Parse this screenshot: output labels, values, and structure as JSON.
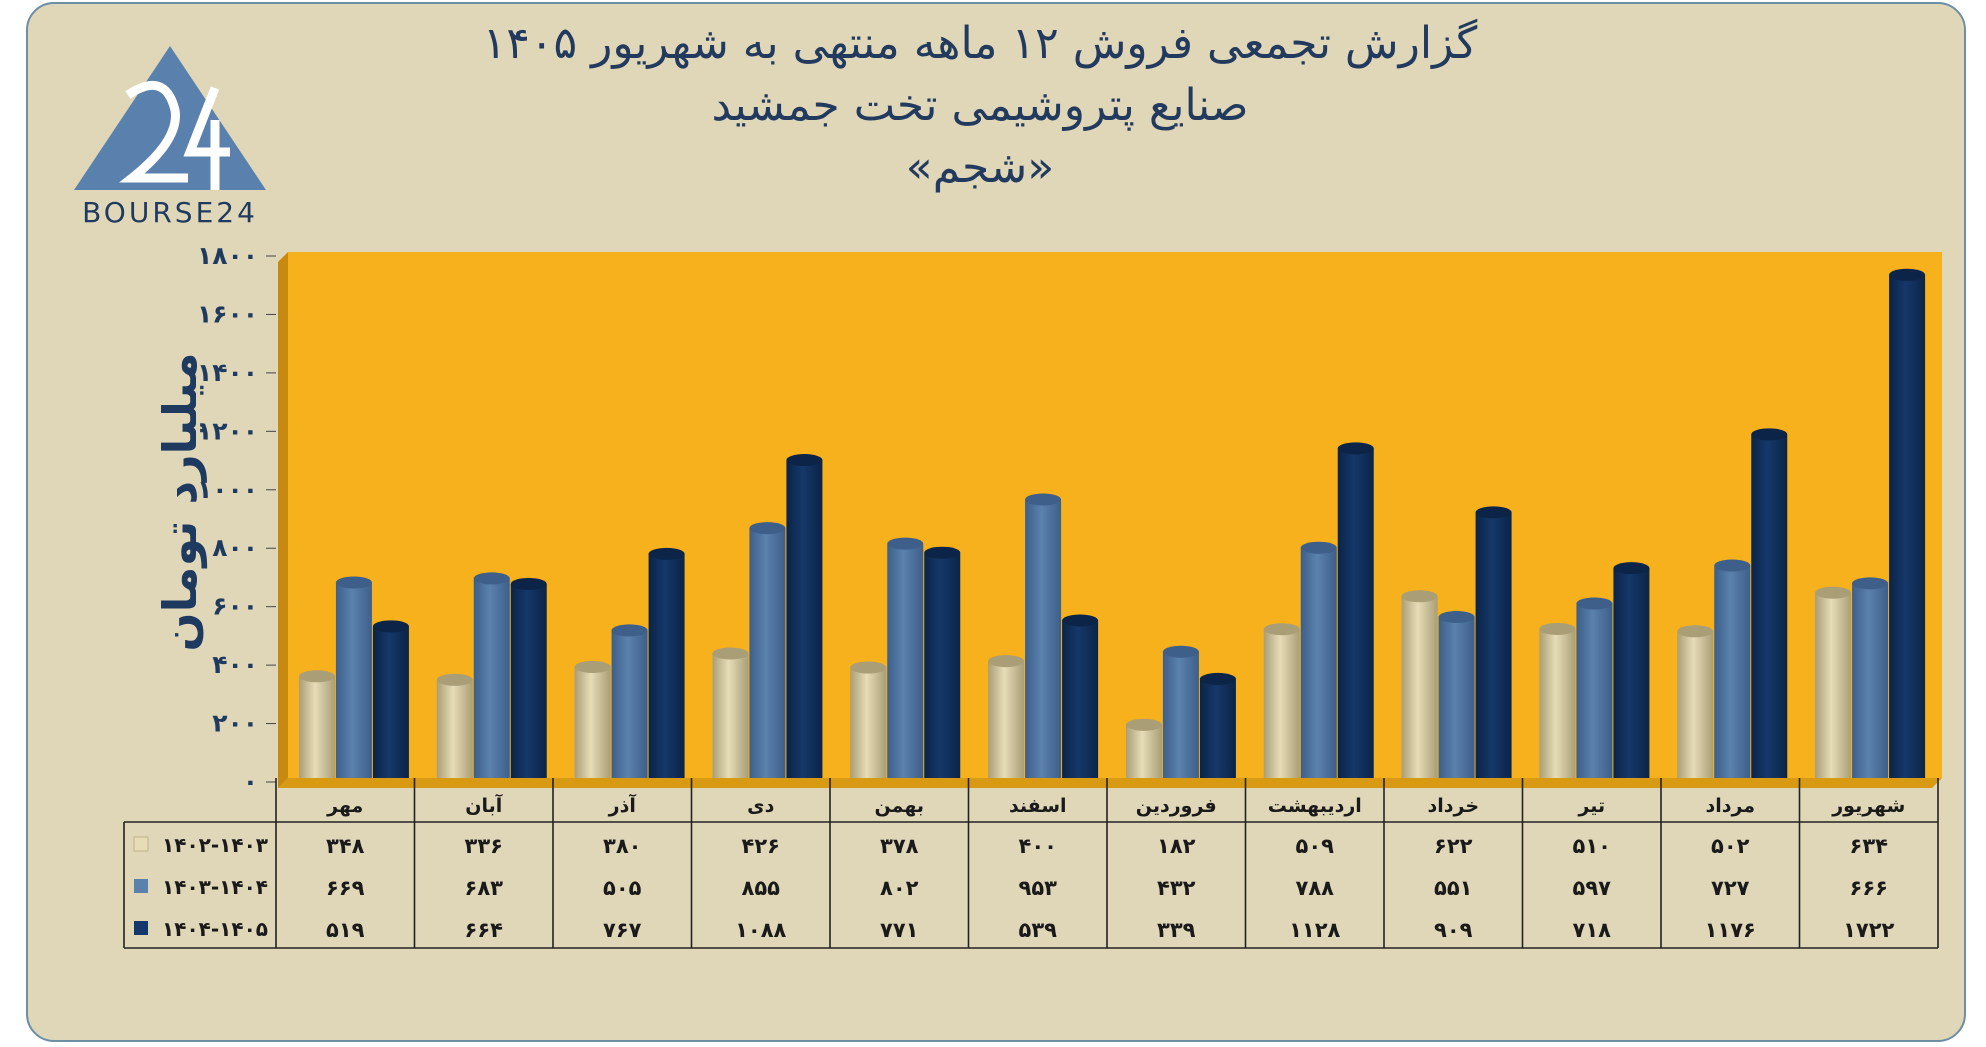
{
  "header": {
    "title_line1": "گزارش تجمعی فروش ۱۲ ماهه منتهی به شهریور ۱۴۰۵",
    "title_line2": "صنایع پتروشیمی تخت جمشید",
    "title_line3": "«شجم»"
  },
  "logo": {
    "text": "BOURSE24",
    "mark": "24",
    "icon": "bourse24-triangle-logo"
  },
  "colors": {
    "series1": "#e6dcb6",
    "series2": "#5b81ad",
    "series3": "#15386a",
    "plot_bg": "#f7b11d",
    "text": "#1f3a5f"
  },
  "chart_data": {
    "type": "bar",
    "ylabel": "میلیارد تومان",
    "ylim": [
      0,
      1800
    ],
    "yticks": [
      0,
      200,
      400,
      600,
      800,
      1000,
      1200,
      1400,
      1600,
      1800
    ],
    "ytick_labels": [
      "۰",
      "۲۰۰",
      "۴۰۰",
      "۶۰۰",
      "۸۰۰",
      "۱۰۰۰",
      "۱۲۰۰",
      "۱۴۰۰",
      "۱۶۰۰",
      "۱۸۰۰"
    ],
    "categories": [
      "مهر",
      "آبان",
      "آذر",
      "دی",
      "بهمن",
      "اسفند",
      "فروردین",
      "اردیبهشت",
      "خرداد",
      "تیر",
      "مرداد",
      "شهریور"
    ],
    "series": [
      {
        "name": "۱۴۰۲-۱۴۰۳",
        "values": [
          348,
          336,
          380,
          426,
          378,
          400,
          182,
          509,
          622,
          510,
          502,
          634
        ],
        "labels": [
          "۳۴۸",
          "۳۳۶",
          "۳۸۰",
          "۴۲۶",
          "۳۷۸",
          "۴۰۰",
          "۱۸۲",
          "۵۰۹",
          "۶۲۲",
          "۵۱۰",
          "۵۰۲",
          "۶۳۴"
        ]
      },
      {
        "name": "۱۴۰۳-۱۴۰۴",
        "values": [
          669,
          683,
          505,
          855,
          802,
          953,
          432,
          788,
          551,
          597,
          727,
          666
        ],
        "labels": [
          "۶۶۹",
          "۶۸۳",
          "۵۰۵",
          "۸۵۵",
          "۸۰۲",
          "۹۵۳",
          "۴۳۲",
          "۷۸۸",
          "۵۵۱",
          "۵۹۷",
          "۷۲۷",
          "۶۶۶"
        ]
      },
      {
        "name": "۱۴۰۴-۱۴۰۵",
        "values": [
          519,
          664,
          767,
          1088,
          771,
          539,
          339,
          1128,
          909,
          718,
          1176,
          1722
        ],
        "labels": [
          "۵۱۹",
          "۶۶۴",
          "۷۶۷",
          "۱۰۸۸",
          "۷۷۱",
          "۵۳۹",
          "۳۳۹",
          "۱۱۲۸",
          "۹۰۹",
          "۷۱۸",
          "۱۱۷۶",
          "۱۷۲۲"
        ]
      }
    ],
    "grid": true,
    "legend": "data-table"
  }
}
